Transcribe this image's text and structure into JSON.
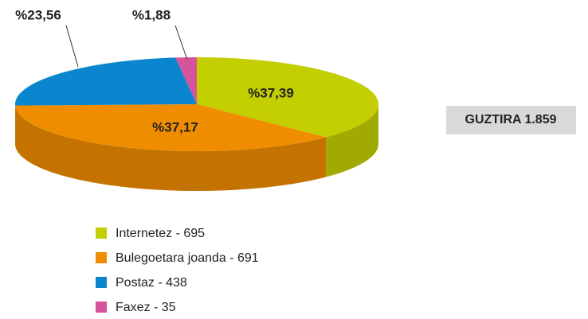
{
  "chart_data": {
    "type": "pie",
    "categories": [
      "Internetez - 695",
      "Bulegoetara joanda - 691",
      "Postaz - 438",
      "Faxez - 35"
    ],
    "values": [
      37.39,
      37.17,
      23.56,
      1.88
    ],
    "value_labels": [
      "%37,39",
      "%37,17",
      "%23,56",
      "%1,88"
    ],
    "colors": [
      "#c3cf00",
      "#f08c00",
      "#0a86cf",
      "#d6559a"
    ],
    "total_label": "GUZTIRA 1.859"
  }
}
